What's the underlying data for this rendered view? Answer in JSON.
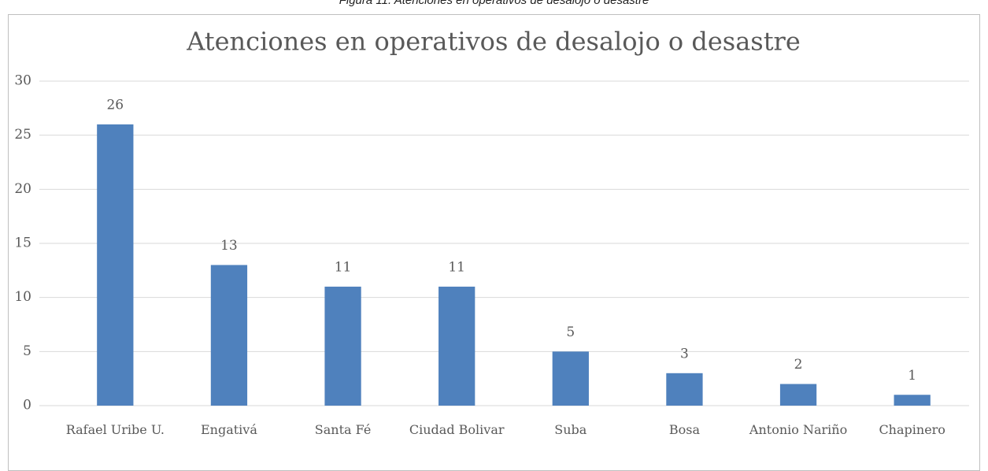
{
  "caption": "Figura 11. Atenciones en operativos de desalojo o desastre",
  "chart_data": {
    "type": "bar",
    "title": "Atenciones en operativos de desalojo o desastre",
    "categories": [
      "Rafael Uribe U.",
      "Engativá",
      "Santa Fé",
      "Ciudad Bolivar",
      "Suba",
      "Bosa",
      "Antonio Nariño",
      "Chapinero"
    ],
    "values": [
      26,
      13,
      11,
      11,
      5,
      3,
      2,
      1
    ],
    "color": "#4f81bd",
    "ylim": [
      0,
      30
    ],
    "yticks": [
      0,
      5,
      10,
      15,
      20,
      25,
      30
    ],
    "grid": true
  }
}
